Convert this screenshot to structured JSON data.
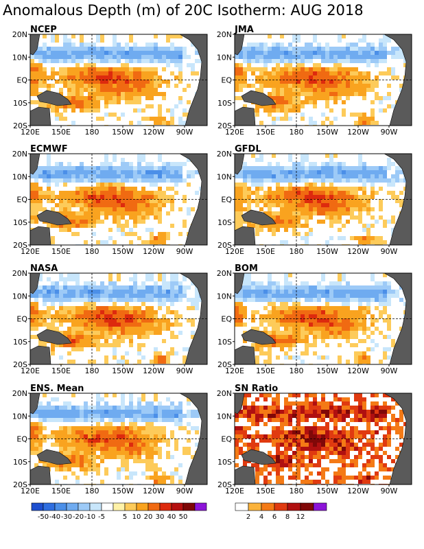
{
  "title": "Anomalous Depth (m) of 20C Isotherm: AUG 2018",
  "panels": [
    {
      "name": "NCEP"
    },
    {
      "name": "JMA"
    },
    {
      "name": "ECMWF"
    },
    {
      "name": "GFDL"
    },
    {
      "name": "NASA"
    },
    {
      "name": "BOM"
    },
    {
      "name": "ENS. Mean"
    },
    {
      "name": "SN Ratio"
    }
  ],
  "lat_labels": [
    "20N",
    "10N",
    "EQ",
    "10S",
    "20S"
  ],
  "lon_labels": [
    "120E",
    "150E",
    "180",
    "150W",
    "120W",
    "90W"
  ],
  "colorbars": {
    "depth_anomaly": {
      "labels": [
        "-50",
        "-40",
        "-30",
        "-20",
        "-10",
        "-5",
        "5",
        "10",
        "20",
        "30",
        "40",
        "50"
      ],
      "colors": [
        "#1e4fcf",
        "#2f6ee0",
        "#4b8fe8",
        "#6fabf0",
        "#9dcaf7",
        "#c8e6fb",
        "#ffffff",
        "#fff2a8",
        "#fdcb5a",
        "#f9a31f",
        "#f06a12",
        "#dd2a0e",
        "#b50f0f",
        "#7e0606",
        "#8c14d8"
      ]
    },
    "sn_ratio": {
      "labels": [
        "2",
        "4",
        "6",
        "8",
        "12"
      ],
      "colors": [
        "#ffffff",
        "#fbb33c",
        "#f47a16",
        "#e03a10",
        "#b01010",
        "#800808",
        "#8c14d8"
      ]
    }
  },
  "colors": {
    "land": "#5a5a5a"
  }
}
